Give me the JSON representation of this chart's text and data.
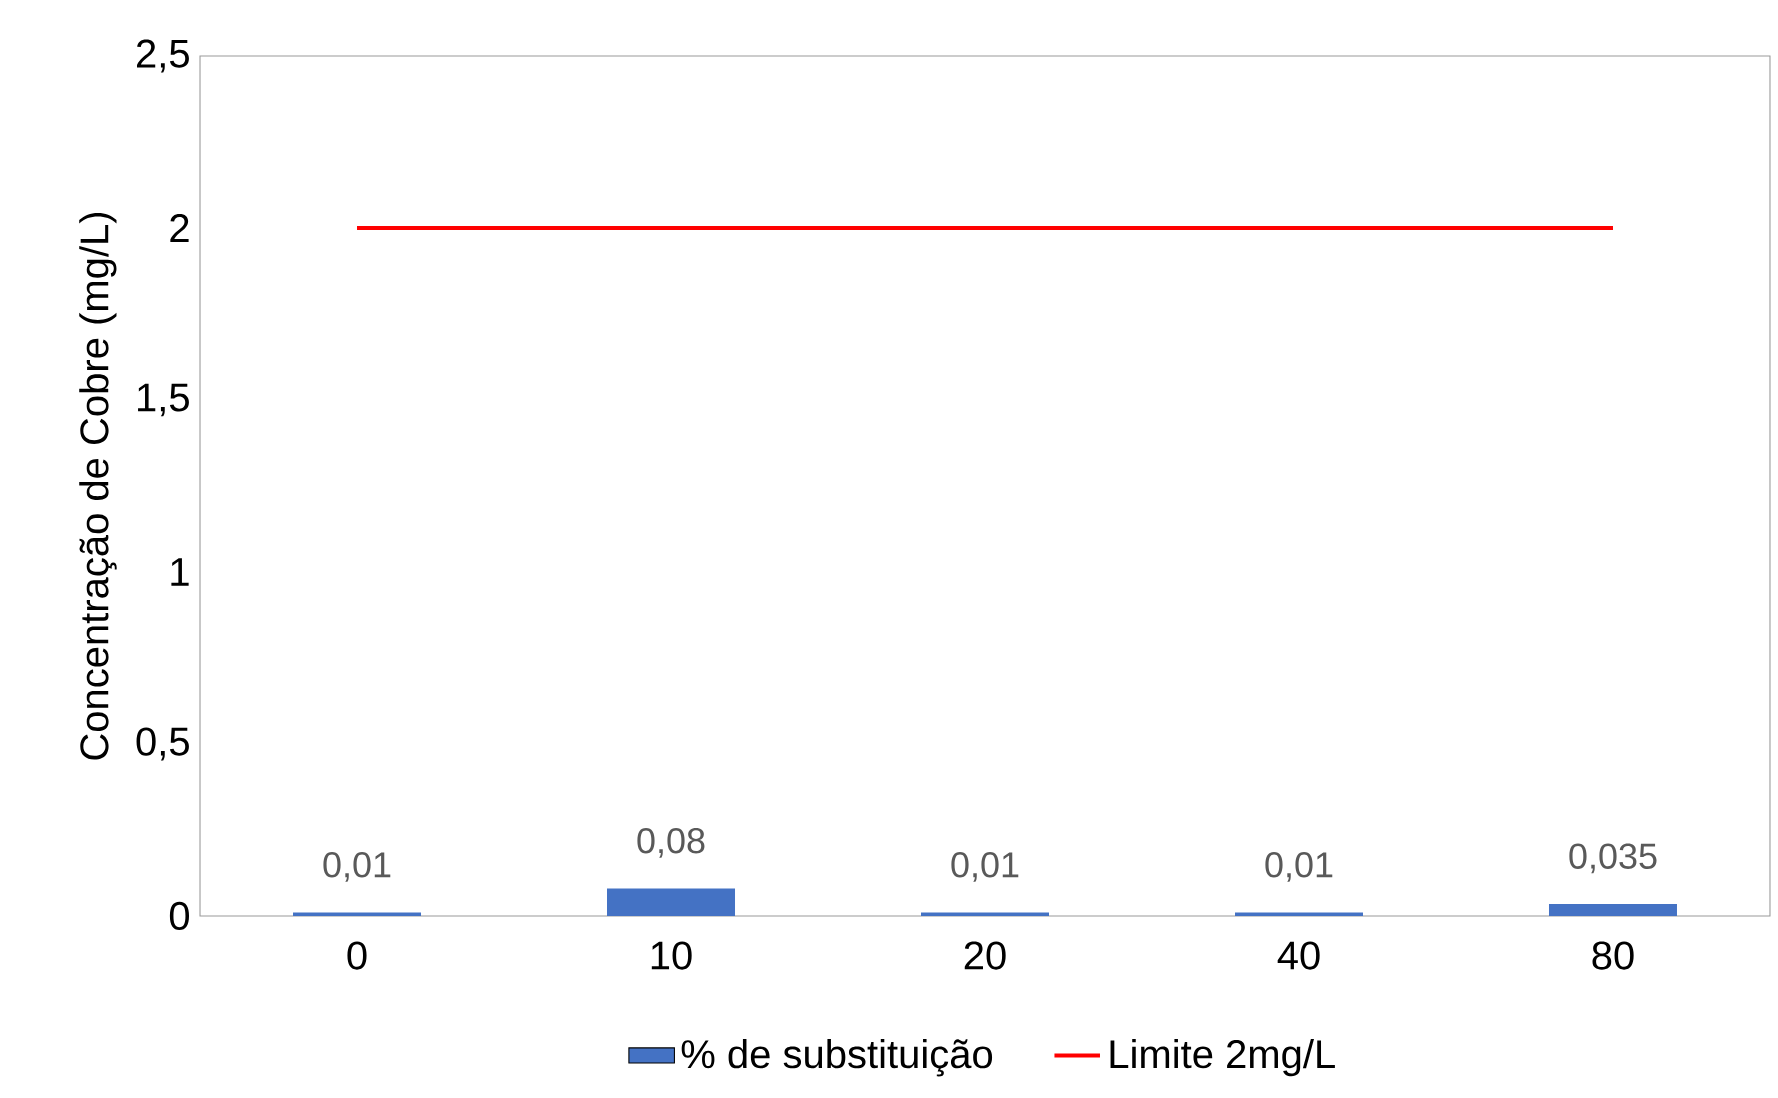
{
  "chart_data": {
    "type": "bar",
    "ylabel": "Concentração de Cobre (mg/L)",
    "categories": [
      "0",
      "10",
      "20",
      "40",
      "80"
    ],
    "series": [
      {
        "name": "% de substituição",
        "color": "#4472c4",
        "values": [
          0.01,
          0.08,
          0.01,
          0.01,
          0.035
        ],
        "value_labels": [
          "0,01",
          "0,08",
          "0,01",
          "0,01",
          "0,035"
        ]
      },
      {
        "name": "Limite 2mg/L",
        "type": "line",
        "color": "#ff0000",
        "values": [
          2,
          2,
          2,
          2,
          2
        ]
      }
    ],
    "ylim": [
      0,
      2.5
    ],
    "yticks": [
      {
        "value": 0,
        "label": "0"
      },
      {
        "value": 0.5,
        "label": "0,5"
      },
      {
        "value": 1,
        "label": "1"
      },
      {
        "value": 1.5,
        "label": "1,5"
      },
      {
        "value": 2,
        "label": "2"
      },
      {
        "value": 2.5,
        "label": "2,5"
      }
    ],
    "grid": false,
    "legend": "bottom"
  }
}
